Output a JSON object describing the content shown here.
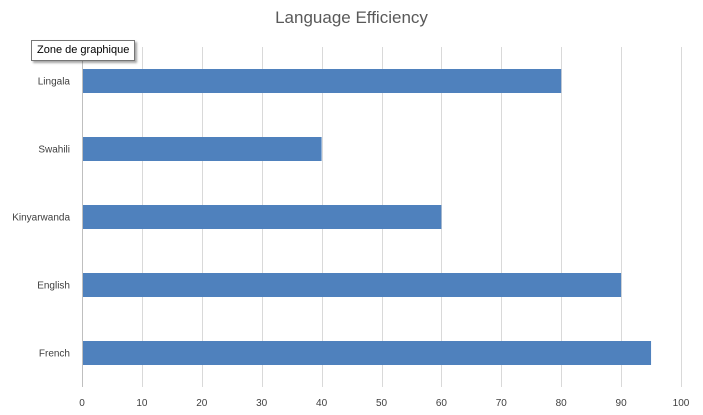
{
  "tooltip": {
    "text": "Zone de graphique"
  },
  "chart_data": {
    "type": "bar",
    "orientation": "horizontal",
    "title": "Language Efficiency",
    "xlabel": "",
    "ylabel": "",
    "categories": [
      "Lingala",
      "Swahili",
      "Kinyarwanda",
      "English",
      "French"
    ],
    "values": [
      80,
      40,
      60,
      90,
      95
    ],
    "xlim": [
      0,
      100
    ],
    "xticks": [
      0,
      10,
      20,
      30,
      40,
      50,
      60,
      70,
      80,
      90,
      100
    ],
    "grid": "vertical",
    "legend": "none",
    "colors": {
      "bar": "#4f81bd",
      "grid": "#d9d9d9",
      "axis": "#bfbfbf",
      "text": "#404040"
    }
  }
}
